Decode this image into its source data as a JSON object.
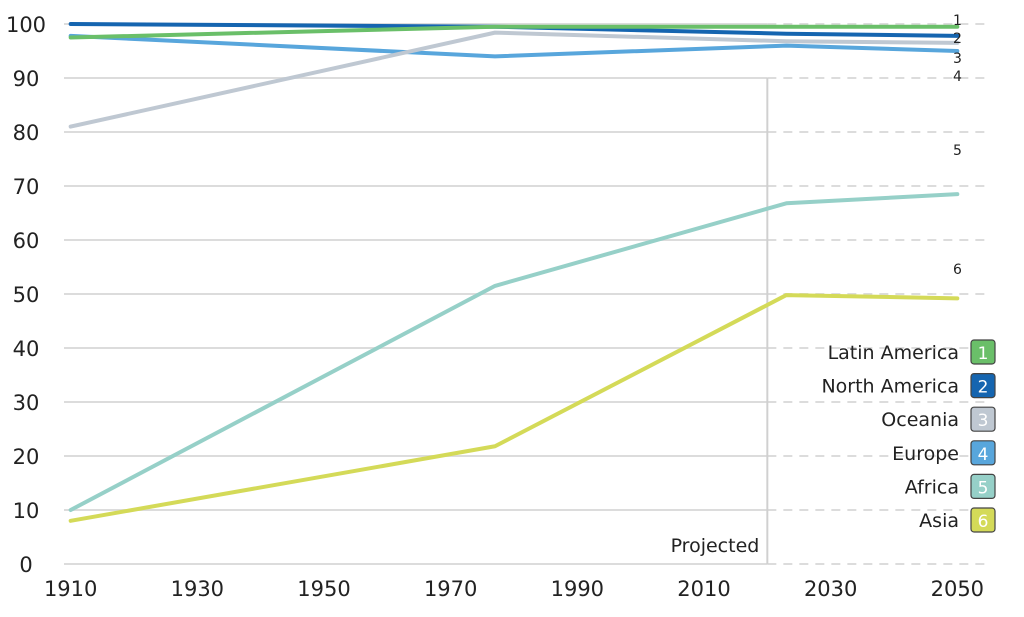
{
  "chart_data": {
    "type": "line",
    "x_ticks": [
      1910,
      1930,
      1950,
      1970,
      1990,
      2010,
      2030,
      2050
    ],
    "y_ticks": [
      0,
      10,
      20,
      30,
      40,
      50,
      60,
      70,
      80,
      90,
      100
    ],
    "xlim": [
      1902,
      2058
    ],
    "ylim": [
      0,
      100
    ],
    "grid": "horizontal",
    "projection_start": 2020,
    "projection_label": "Projected",
    "legend_position": "lower-right",
    "series": [
      {
        "key": "1",
        "name": "Latin America",
        "color": "#6abf69",
        "x": [
          1910,
          1977,
          2023,
          2050
        ],
        "y": [
          97.5,
          99.5,
          99.5,
          99.5
        ]
      },
      {
        "key": "2",
        "name": "North America",
        "color": "#1565b0",
        "x": [
          1910,
          1977,
          2023,
          2050
        ],
        "y": [
          100,
          99.5,
          98.2,
          97.8
        ]
      },
      {
        "key": "3",
        "name": "Oceania",
        "color": "#bfc8d2",
        "x": [
          1910,
          1977,
          2023,
          2050
        ],
        "y": [
          81,
          98.4,
          96.8,
          96.5
        ]
      },
      {
        "key": "4",
        "name": "Europe",
        "color": "#58a6dc",
        "x": [
          1910,
          1977,
          2023,
          2050
        ],
        "y": [
          97.8,
          94,
          96,
          95
        ]
      },
      {
        "key": "5",
        "name": "Africa",
        "color": "#96d0c8",
        "x": [
          1910,
          1977,
          2023,
          2050
        ],
        "y": [
          10,
          51.5,
          66.8,
          68.5
        ]
      },
      {
        "key": "6",
        "name": "Asia",
        "color": "#d4da58",
        "x": [
          1910,
          1977,
          2023,
          2050
        ],
        "y": [
          8,
          21.8,
          49.8,
          49.2
        ]
      }
    ]
  }
}
